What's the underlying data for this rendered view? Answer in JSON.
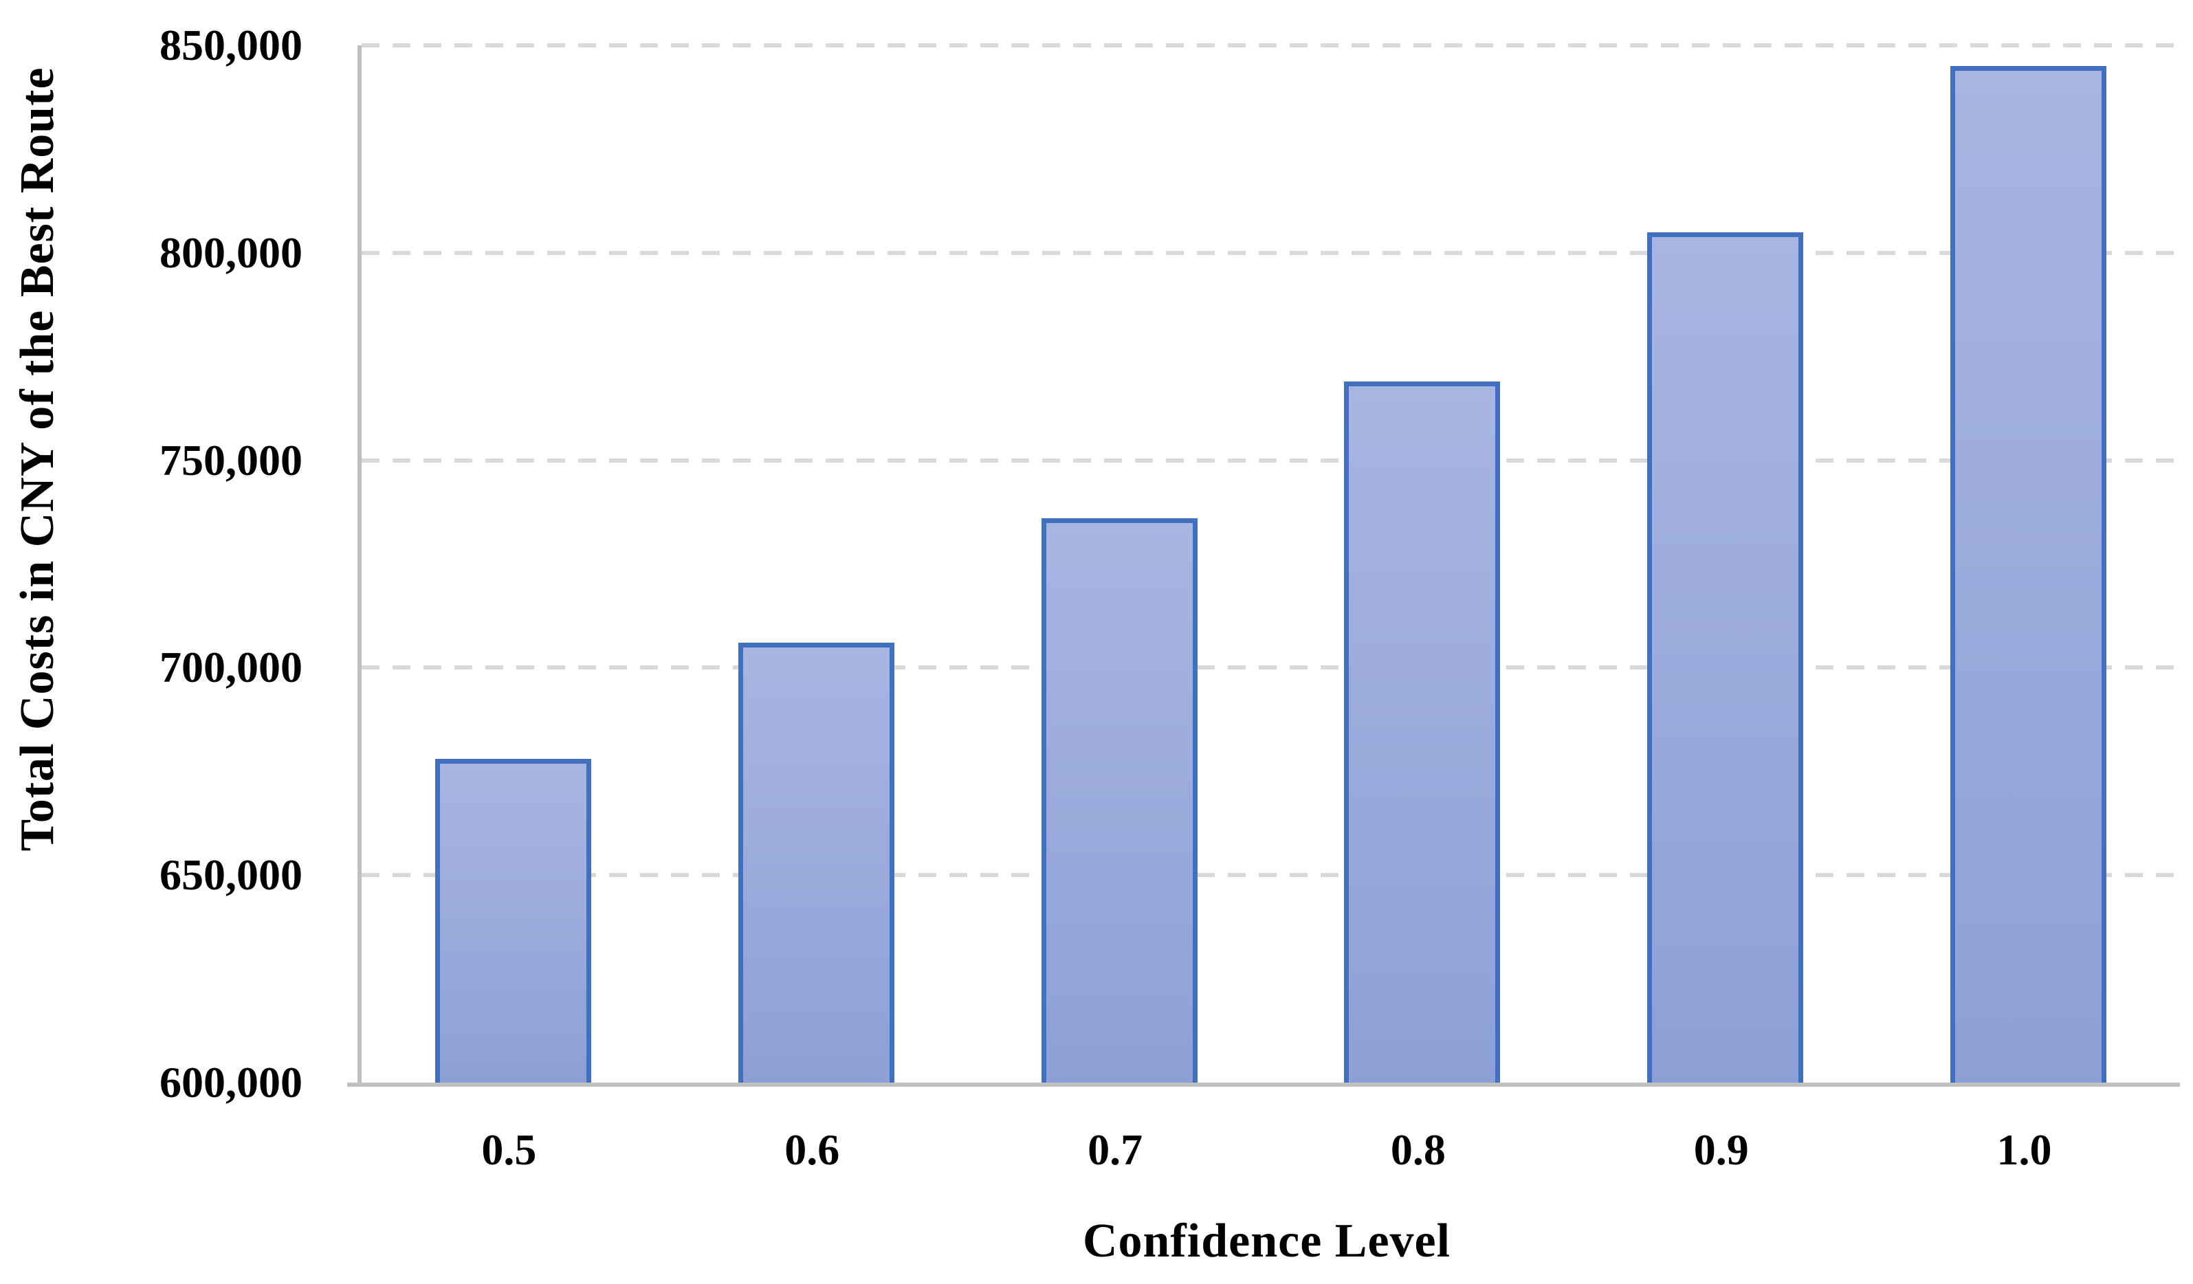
{
  "chart_data": {
    "type": "bar",
    "categories": [
      "0.5",
      "0.6",
      "0.7",
      "0.8",
      "0.9",
      "1.0"
    ],
    "values": [
      678000,
      706000,
      736000,
      769000,
      805000,
      845000
    ],
    "title": "",
    "xlabel": "Confidence Level",
    "ylabel": "Total Costs in CNY of the Best Route",
    "ylim": [
      600000,
      850000
    ],
    "ytick_step": 50000,
    "yticks_top_to_bottom": [
      "850,000",
      "800,000",
      "750,000",
      "700,000",
      "650,000",
      "600,000"
    ],
    "grid": "horizontal-dashed",
    "legend": "none",
    "bar_count": 6
  },
  "colors": {
    "background": "#ffffff",
    "text": "#000000",
    "bar_fill_top": "#a8b5e1",
    "bar_fill_bottom": "#8da0d6",
    "bar_border": "#4170c0",
    "gridline": "#d9d9d9",
    "axis_line": "#bfbfbf"
  }
}
